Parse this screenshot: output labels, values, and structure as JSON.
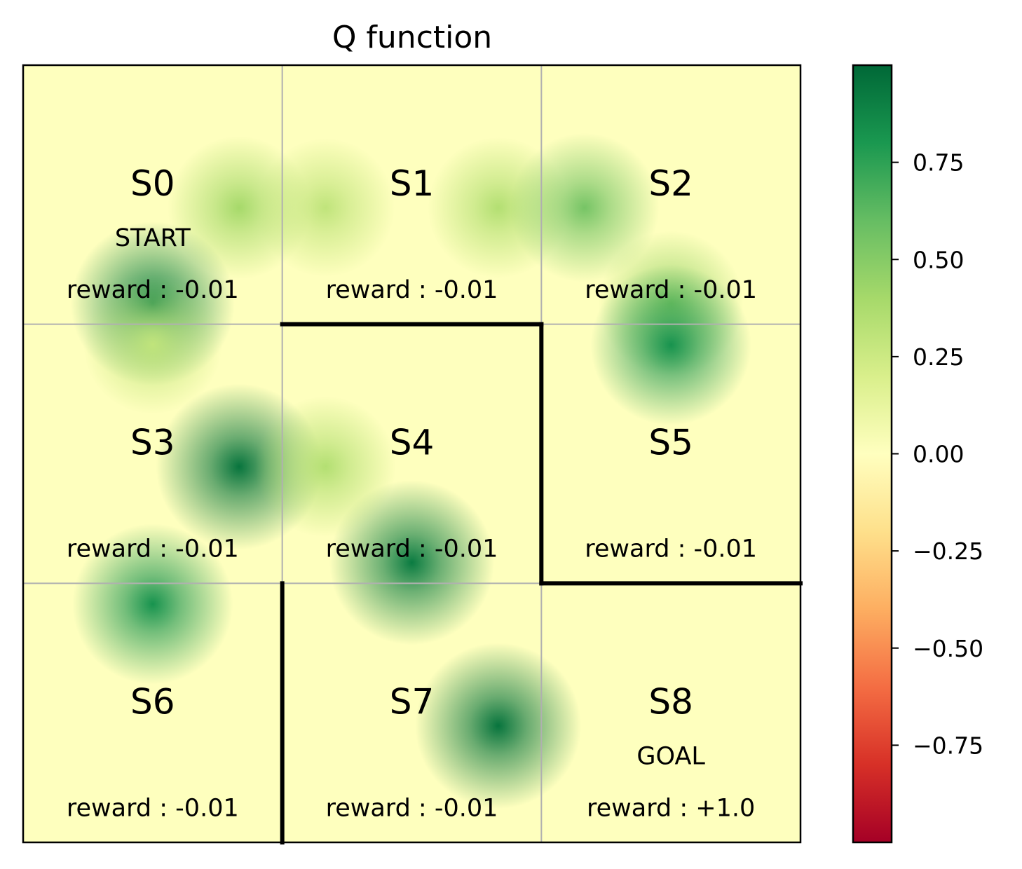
{
  "chart_data": {
    "type": "heatmap",
    "title": "Q function",
    "grid": {
      "rows": 3,
      "cols": 3,
      "cells": [
        {
          "state": "S0",
          "tag": "START",
          "reward": "reward : -0.01"
        },
        {
          "state": "S1",
          "tag": "",
          "reward": "reward : -0.01"
        },
        {
          "state": "S2",
          "tag": "",
          "reward": "reward : -0.01"
        },
        {
          "state": "S3",
          "tag": "",
          "reward": "reward : -0.01"
        },
        {
          "state": "S4",
          "tag": "",
          "reward": "reward : -0.01"
        },
        {
          "state": "S5",
          "tag": "",
          "reward": "reward : -0.01"
        },
        {
          "state": "S6",
          "tag": "",
          "reward": "reward : -0.01"
        },
        {
          "state": "S7",
          "tag": "",
          "reward": "reward : -0.01"
        },
        {
          "state": "S8",
          "tag": "GOAL",
          "reward": "reward : +1.0"
        }
      ],
      "walls": [
        {
          "from": [
            1,
            1
          ],
          "to": [
            2,
            1
          ]
        },
        {
          "from": [
            2,
            1
          ],
          "to": [
            2,
            2
          ]
        },
        {
          "from": [
            2,
            2
          ],
          "to": [
            3,
            2
          ]
        },
        {
          "from": [
            1,
            2
          ],
          "to": [
            1,
            3
          ]
        }
      ]
    },
    "q_values": [
      {
        "state": "S0",
        "action": "right",
        "value": 0.4
      },
      {
        "state": "S0",
        "action": "down",
        "value": 0.9
      },
      {
        "state": "S1",
        "action": "left",
        "value": 0.3
      },
      {
        "state": "S1",
        "action": "right",
        "value": 0.35
      },
      {
        "state": "S2",
        "action": "left",
        "value": 0.55
      },
      {
        "state": "S2",
        "action": "down",
        "value": 0.45
      },
      {
        "state": "S3",
        "action": "right",
        "value": 0.95
      },
      {
        "state": "S3",
        "action": "up",
        "value": 0.3
      },
      {
        "state": "S4",
        "action": "down",
        "value": 0.92
      },
      {
        "state": "S4",
        "action": "left",
        "value": 0.35
      },
      {
        "state": "S5",
        "action": "up",
        "value": 0.82
      },
      {
        "state": "S6",
        "action": "up",
        "value": 0.82
      },
      {
        "state": "S7",
        "action": "right",
        "value": 0.95
      }
    ],
    "colorbar": {
      "colormap": "RdYlGn",
      "range": [
        -1,
        1
      ],
      "ticks": [
        0.75,
        0.5,
        0.25,
        0.0,
        -0.25,
        -0.5,
        -0.75
      ],
      "tick_labels": [
        "0.75",
        "0.50",
        "0.25",
        "0.00",
        "−0.25",
        "−0.50",
        "−0.75"
      ]
    },
    "colors": {
      "cell_background": "#feffbe",
      "grid_lines": "#b0b0b0",
      "walls": "#000000"
    }
  }
}
